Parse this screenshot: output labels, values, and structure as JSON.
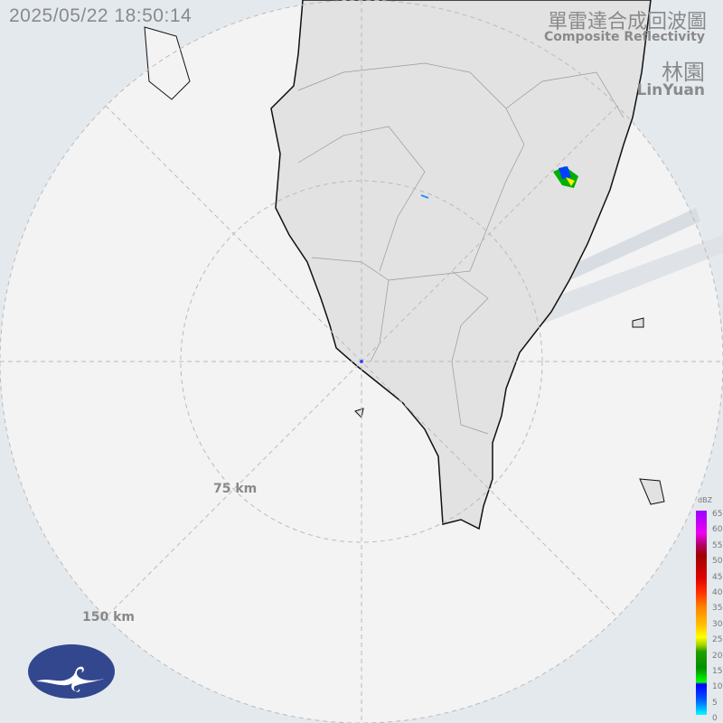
{
  "timestamp": "2025/05/22 18:50:14",
  "title_zh": "單雷達合成回波圖",
  "title_en": "Composite Reflectivity",
  "station_zh": "林園",
  "station_en": "LinYuan",
  "ring_labels": [
    "75 km",
    "150 km"
  ],
  "colorbar": {
    "unit": "dBZ",
    "ticks": [
      "65",
      "60",
      "55",
      "50",
      "45",
      "40",
      "35",
      "30",
      "25",
      "20",
      "15",
      "10",
      "5",
      "0"
    ]
  },
  "colors": {
    "land": "#e2e2e2",
    "coast": "#111111",
    "radar_area": "#f2f2f2",
    "outside": "#e4e9ee",
    "logo": "#33478f"
  },
  "logo_icon": "weather-bureau-cloud-logo"
}
